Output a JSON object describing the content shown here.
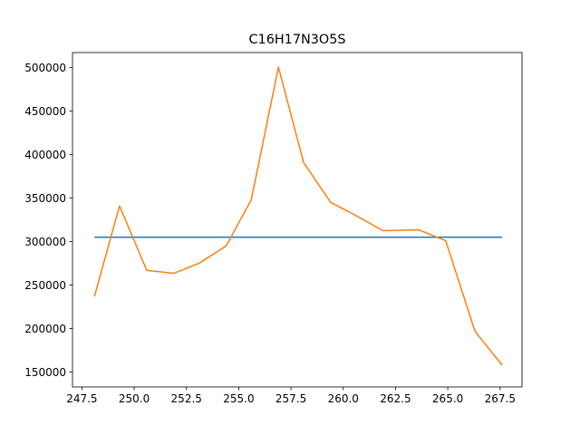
{
  "chart_data": {
    "type": "line",
    "title": "C16H17N3O5S",
    "xlabel": "",
    "ylabel": "",
    "xlim": [
      247.05,
      268.55
    ],
    "ylim": [
      132900,
      517200
    ],
    "x_ticks": [
      247.5,
      250.0,
      252.5,
      255.0,
      257.5,
      260.0,
      262.5,
      265.0,
      267.5
    ],
    "x_tick_labels": [
      "247.5",
      "250.0",
      "252.5",
      "255.0",
      "257.5",
      "260.0",
      "262.5",
      "265.0",
      "267.5"
    ],
    "y_ticks": [
      150000,
      200000,
      250000,
      300000,
      350000,
      400000,
      450000,
      500000
    ],
    "y_tick_labels": [
      "150000",
      "200000",
      "250000",
      "300000",
      "350000",
      "400000",
      "450000",
      "500000"
    ],
    "grid": false,
    "series": [
      {
        "color": "#1f77b4",
        "x": [
          248.1,
          267.6
        ],
        "y": [
          305000,
          305000
        ]
      },
      {
        "color": "#ff7f0e",
        "x": [
          248.1,
          249.3,
          250.6,
          251.9,
          253.1,
          254.4,
          255.6,
          256.9,
          258.1,
          259.4,
          260.6,
          261.9,
          263.6,
          264.9,
          266.3,
          267.6
        ],
        "y": [
          237000,
          341000,
          267000,
          263500,
          275000,
          295000,
          348000,
          500500,
          391000,
          345000,
          330000,
          312500,
          313500,
          301000,
          197000,
          158000
        ]
      }
    ]
  }
}
